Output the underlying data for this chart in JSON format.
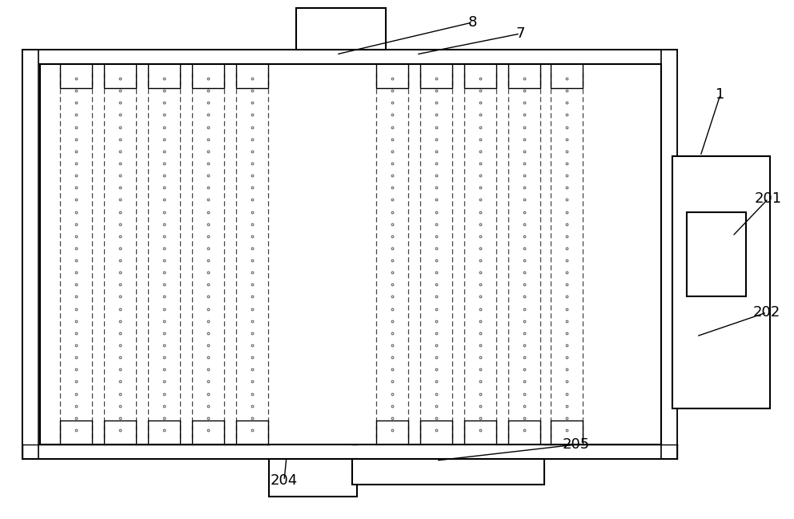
{
  "bg_color": "#ffffff",
  "line_color": "#000000",
  "fig_width": 9.92,
  "fig_height": 6.48
}
